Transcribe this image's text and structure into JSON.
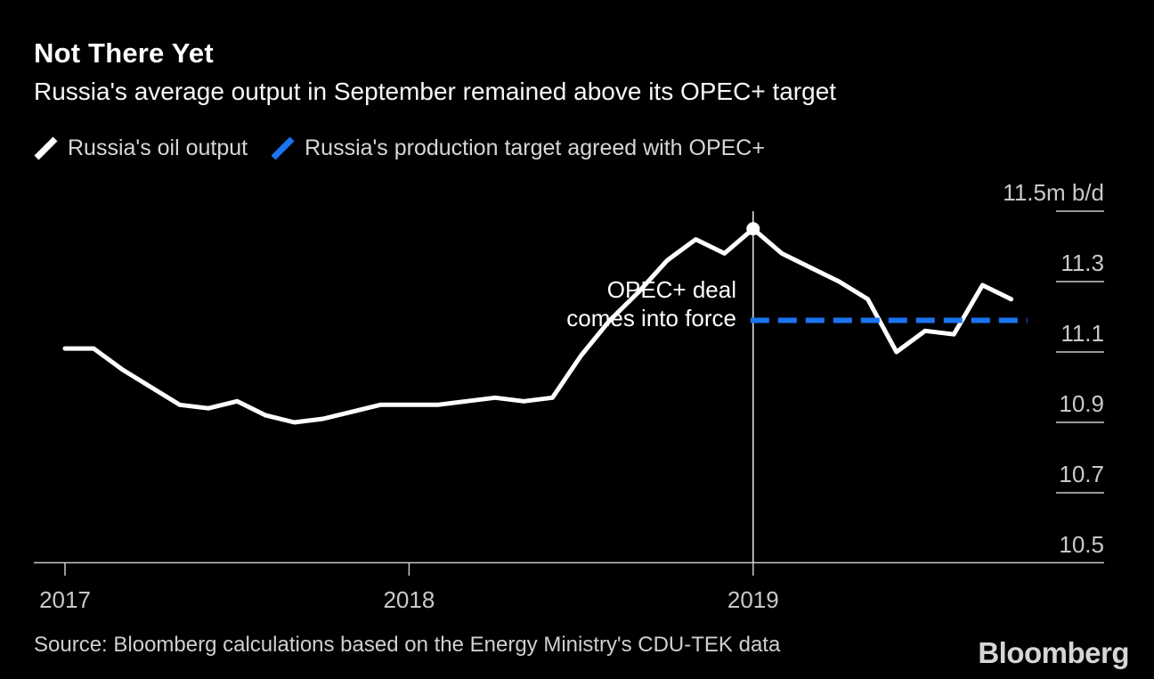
{
  "header": {
    "title": "Not There Yet",
    "subtitle": "Russia's average output in September remained above its OPEC+ target"
  },
  "legend": [
    {
      "label": "Russia's oil output",
      "color": "#ffffff"
    },
    {
      "label": "Russia's production target agreed with OPEC+",
      "color": "#1b74f2"
    }
  ],
  "annotation": {
    "line1": "OPEC+ deal",
    "line2": "comes into force"
  },
  "source": "Source: Bloomberg calculations based on the Energy Ministry's CDU-TEK data",
  "branding": "Bloomberg",
  "colors": {
    "background": "#000000",
    "text": "#ffffff",
    "axis": "#c9c9c9",
    "event_line": "#e8e8e8",
    "accent_blue": "#1b74f2"
  },
  "chart_data": {
    "type": "line",
    "title": "Not There Yet",
    "unit": "m b/d",
    "ylim": [
      10.5,
      11.5
    ],
    "y_ticks": [
      "11.5m b/d",
      "11.3",
      "11.1",
      "10.9",
      "10.7",
      "10.5"
    ],
    "y_tick_values": [
      11.5,
      11.3,
      11.1,
      10.9,
      10.7,
      10.5
    ],
    "x_ticks": [
      "2017",
      "2018",
      "2019"
    ],
    "grid": "right-side tick stubs only",
    "legend_position": "top-left",
    "series": [
      {
        "name": "Russia's oil output",
        "color": "#ffffff",
        "style": "solid",
        "points": [
          {
            "date": "2017-01",
            "value": 11.11
          },
          {
            "date": "2017-02",
            "value": 11.11
          },
          {
            "date": "2017-03",
            "value": 11.05
          },
          {
            "date": "2017-04",
            "value": 11.0
          },
          {
            "date": "2017-05",
            "value": 10.95
          },
          {
            "date": "2017-06",
            "value": 10.94
          },
          {
            "date": "2017-07",
            "value": 10.96
          },
          {
            "date": "2017-08",
            "value": 10.92
          },
          {
            "date": "2017-09",
            "value": 10.9
          },
          {
            "date": "2017-10",
            "value": 10.91
          },
          {
            "date": "2017-11",
            "value": 10.93
          },
          {
            "date": "2017-12",
            "value": 10.95
          },
          {
            "date": "2018-01",
            "value": 10.95
          },
          {
            "date": "2018-02",
            "value": 10.95
          },
          {
            "date": "2018-03",
            "value": 10.96
          },
          {
            "date": "2018-04",
            "value": 10.97
          },
          {
            "date": "2018-05",
            "value": 10.96
          },
          {
            "date": "2018-06",
            "value": 10.97
          },
          {
            "date": "2018-07",
            "value": 11.09
          },
          {
            "date": "2018-08",
            "value": 11.19
          },
          {
            "date": "2018-09",
            "value": 11.27
          },
          {
            "date": "2018-10",
            "value": 11.36
          },
          {
            "date": "2018-11",
            "value": 11.42
          },
          {
            "date": "2018-12",
            "value": 11.38
          },
          {
            "date": "2019-01",
            "value": 11.45
          },
          {
            "date": "2019-02",
            "value": 11.38
          },
          {
            "date": "2019-03",
            "value": 11.34
          },
          {
            "date": "2019-04",
            "value": 11.3
          },
          {
            "date": "2019-05",
            "value": 11.25
          },
          {
            "date": "2019-06",
            "value": 11.1
          },
          {
            "date": "2019-07",
            "value": 11.16
          },
          {
            "date": "2019-08",
            "value": 11.15
          },
          {
            "date": "2019-09",
            "value": 11.29
          },
          {
            "date": "2019-10",
            "value": 11.25
          }
        ]
      },
      {
        "name": "Russia's production target agreed with OPEC+",
        "color": "#1b74f2",
        "style": "dashed",
        "points": [
          {
            "date": "2019-01",
            "value": 11.19
          },
          {
            "date": "2019-10",
            "value": 11.19
          }
        ]
      }
    ],
    "event": {
      "date": "2019-01",
      "label": "OPEC+ deal comes into force",
      "peak_value": 11.45
    }
  }
}
